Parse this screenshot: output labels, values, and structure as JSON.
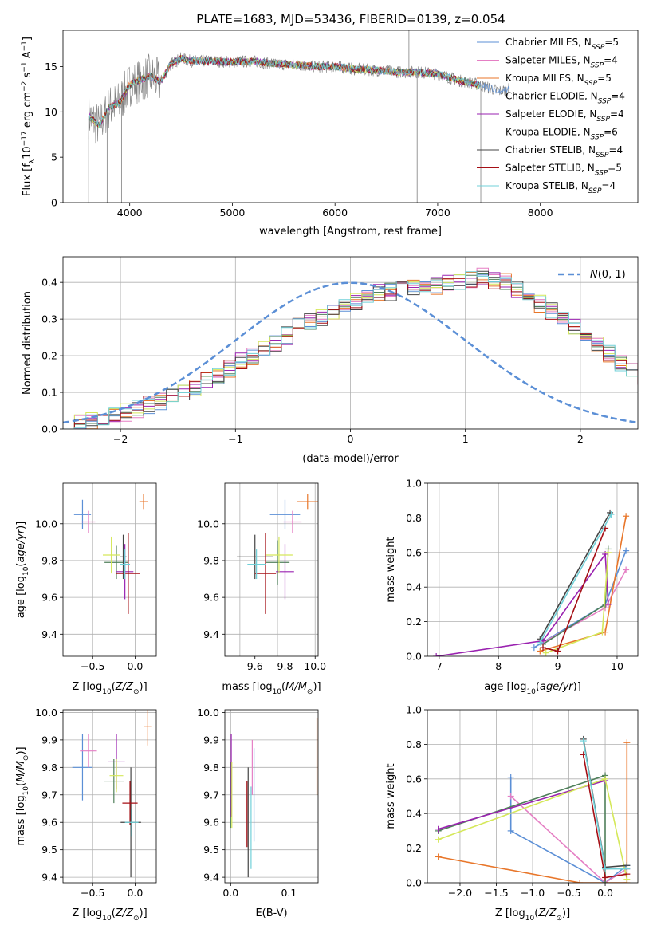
{
  "title": "PLATE=1683, MJD=53436, FIBERID=0139, z=0.054",
  "colors": {
    "Chabrier MILES": "#5b8fd6",
    "Salpeter MILES": "#e57fc4",
    "Kroupa MILES": "#e8762a",
    "Chabrier ELODIE": "#4f7f5a",
    "Salpeter ELODIE": "#9a22b0",
    "Kroupa ELODIE": "#d5e85a",
    "Chabrier STELIB": "#444444",
    "Salpeter STELIB": "#a50f15",
    "Kroupa STELIB": "#70d0d8",
    "data": "#808080",
    "normal": "#5b8fd6"
  },
  "chart_data": [
    {
      "id": "spectrum",
      "type": "line",
      "xlabel": "wavelength [Angstrom, rest frame]",
      "ylabel": "Flux [f_λ 10^-17 erg cm^-2 s^-1 A^-1]",
      "xlim": [
        3350,
        8950
      ],
      "ylim": [
        0,
        19
      ],
      "xticks": [
        4000,
        5000,
        6000,
        7000,
        8000
      ],
      "yticks": [
        0,
        5,
        10,
        15
      ],
      "grid": false,
      "legend_position": "top-right",
      "legend": [
        "Chabrier MILES, N_SSP=5",
        "Salpeter MILES, N_SSP=4",
        "Kroupa MILES, N_SSP=5",
        "Chabrier ELODIE, N_SSP=4",
        "Salpeter ELODIE, N_SSP=4",
        "Kroupa ELODIE, N_SSP=6",
        "Chabrier STELIB, N_SSP=4",
        "Salpeter STELIB, N_SSP=5",
        "Kroupa STELIB, N_SSP=4"
      ],
      "continuum": {
        "wavelength": [
          3600,
          3700,
          3800,
          3900,
          4000,
          4100,
          4200,
          4300,
          4400,
          4500,
          4600,
          4800,
          5000,
          5200,
          5400,
          5600,
          5800,
          6000,
          6200,
          6400,
          6600,
          6800,
          7000,
          7200,
          7400,
          7600,
          7700
        ],
        "flux": [
          9.5,
          8.5,
          10.5,
          11.0,
          13.0,
          13.5,
          14.0,
          13.3,
          15.3,
          15.9,
          15.6,
          15.6,
          15.5,
          15.6,
          15.3,
          15.2,
          15.0,
          15.0,
          14.7,
          14.6,
          14.4,
          14.4,
          14.2,
          13.5,
          13.0,
          12.3,
          12.5
        ]
      }
    },
    {
      "id": "residuals",
      "type": "line",
      "xlabel": "(data-model)/error",
      "ylabel": "Normed distribution",
      "xlim": [
        -2.5,
        2.5
      ],
      "ylim": [
        0,
        0.47
      ],
      "xticks": [
        -2,
        -1,
        0,
        1,
        2
      ],
      "yticks": [
        0.0,
        0.1,
        0.2,
        0.3,
        0.4
      ],
      "grid": true,
      "legend_position": "top-right",
      "legend": [
        "N(0,1)"
      ],
      "bin_width": 0.1,
      "bins_start": -2.5,
      "histogram": [
        0.015,
        0.02,
        0.025,
        0.03,
        0.035,
        0.045,
        0.055,
        0.065,
        0.075,
        0.085,
        0.1,
        0.115,
        0.13,
        0.145,
        0.165,
        0.185,
        0.2,
        0.215,
        0.235,
        0.255,
        0.28,
        0.29,
        0.305,
        0.32,
        0.335,
        0.35,
        0.36,
        0.37,
        0.375,
        0.385,
        0.39,
        0.395,
        0.39,
        0.4,
        0.405,
        0.41,
        0.415,
        0.405,
        0.4,
        0.38,
        0.36,
        0.34,
        0.32,
        0.295,
        0.275,
        0.255,
        0.23,
        0.205,
        0.18,
        0.16,
        0.14,
        0.12,
        0.1,
        0.085,
        0.07,
        0.06,
        0.05,
        0.04,
        0.035,
        0.03
      ]
    },
    {
      "id": "age-vs-Z",
      "type": "scatter",
      "xlabel": "Z [log10(Z/Z_sun)]",
      "ylabel": "age [log10(age/yr)]",
      "xlim": [
        -0.85,
        0.25
      ],
      "ylim": [
        9.28,
        10.22
      ],
      "xticks": [
        -0.5,
        0.0
      ],
      "yticks": [
        9.4,
        9.6,
        9.8,
        10.0
      ],
      "grid": true,
      "points": [
        {
          "model": "Chabrier MILES",
          "x": -0.62,
          "xerr": 0.1,
          "y": 10.05,
          "yerr": 0.08
        },
        {
          "model": "Salpeter MILES",
          "x": -0.55,
          "xerr": 0.08,
          "y": 10.01,
          "yerr": 0.06
        },
        {
          "model": "Kroupa MILES",
          "x": 0.1,
          "xerr": 0.05,
          "y": 10.12,
          "yerr": 0.04
        },
        {
          "model": "Chabrier ELODIE",
          "x": -0.22,
          "xerr": 0.14,
          "y": 9.79,
          "yerr": 0.09
        },
        {
          "model": "Salpeter ELODIE",
          "x": -0.12,
          "xerr": 0.1,
          "y": 9.74,
          "yerr": 0.15
        },
        {
          "model": "Kroupa ELODIE",
          "x": -0.28,
          "xerr": 0.1,
          "y": 9.83,
          "yerr": 0.1
        },
        {
          "model": "Chabrier STELIB",
          "x": -0.14,
          "xerr": 0.04,
          "y": 9.82,
          "yerr": 0.12
        },
        {
          "model": "Salpeter STELIB",
          "x": -0.08,
          "xerr": 0.14,
          "y": 9.73,
          "yerr": 0.22
        },
        {
          "model": "Kroupa STELIB",
          "x": -0.12,
          "xerr": 0.06,
          "y": 9.78,
          "yerr": 0.08
        }
      ]
    },
    {
      "id": "age-vs-mass",
      "type": "scatter",
      "xlabel": "mass [log10(M/M_sun)]",
      "ylabel": "",
      "xlim": [
        9.4,
        10.02
      ],
      "ylim": [
        9.28,
        10.22
      ],
      "xticks": [
        9.5,
        9.75,
        10.0
      ],
      "xticklabels": [
        "",
        "",
        ""
      ],
      "xtick_labels": [
        {
          "v": 9.6,
          "t": "9.6"
        },
        {
          "v": 9.8,
          "t": "9.8"
        },
        {
          "v": 10.0,
          "t": "10.0"
        }
      ],
      "yticks": [
        9.4,
        9.6,
        9.8,
        10.0
      ],
      "grid": true,
      "points": [
        {
          "model": "Chabrier MILES",
          "x": 9.8,
          "xerr": 0.1,
          "y": 10.05,
          "yerr": 0.08
        },
        {
          "model": "Salpeter MILES",
          "x": 9.85,
          "xerr": 0.06,
          "y": 10.01,
          "yerr": 0.06
        },
        {
          "model": "Kroupa MILES",
          "x": 9.95,
          "xerr": 0.07,
          "y": 10.12,
          "yerr": 0.04
        },
        {
          "model": "Chabrier ELODIE",
          "x": 9.75,
          "xerr": 0.08,
          "y": 9.79,
          "yerr": 0.12
        },
        {
          "model": "Salpeter ELODIE",
          "x": 9.8,
          "xerr": 0.06,
          "y": 9.74,
          "yerr": 0.15
        },
        {
          "model": "Kroupa ELODIE",
          "x": 9.76,
          "xerr": 0.09,
          "y": 9.83,
          "yerr": 0.1
        },
        {
          "model": "Chabrier STELIB",
          "x": 9.6,
          "xerr": 0.12,
          "y": 9.82,
          "yerr": 0.12
        },
        {
          "model": "Salpeter STELIB",
          "x": 9.67,
          "xerr": 0.07,
          "y": 9.73,
          "yerr": 0.22
        },
        {
          "model": "Kroupa STELIB",
          "x": 9.61,
          "xerr": 0.06,
          "y": 9.78,
          "yerr": 0.08
        }
      ]
    },
    {
      "id": "weight-vs-age",
      "type": "line",
      "xlabel": "age [log10(age/yr)]",
      "ylabel": "mass weight",
      "xlim": [
        6.8,
        10.35
      ],
      "ylim": [
        0,
        1.0
      ],
      "xticks": [
        7,
        8,
        9,
        10
      ],
      "yticks": [
        0.0,
        0.2,
        0.4,
        0.6,
        0.8,
        1.0
      ],
      "grid": true,
      "series": [
        {
          "model": "Chabrier MILES",
          "x": [
            8.6,
            9.8,
            10.15
          ],
          "y": [
            0.05,
            0.3,
            0.61
          ]
        },
        {
          "model": "Salpeter MILES",
          "x": [
            8.75,
            9.8,
            10.15
          ],
          "y": [
            0.08,
            0.28,
            0.5
          ]
        },
        {
          "model": "Kroupa MILES",
          "x": [
            8.7,
            9.8,
            10.15
          ],
          "y": [
            0.03,
            0.14,
            0.81
          ]
        },
        {
          "model": "Chabrier ELODIE",
          "x": [
            8.75,
            9.8,
            9.85
          ],
          "y": [
            0.07,
            0.3,
            0.62
          ]
        },
        {
          "model": "Salpeter ELODIE",
          "x": [
            6.95,
            8.75,
            9.8,
            9.85
          ],
          "y": [
            0.0,
            0.09,
            0.59,
            0.3
          ]
        },
        {
          "model": "Kroupa ELODIE",
          "x": [
            8.8,
            9.75,
            9.85
          ],
          "y": [
            0.02,
            0.14,
            0.6
          ]
        },
        {
          "model": "Chabrier STELIB",
          "x": [
            8.7,
            9.88
          ],
          "y": [
            0.1,
            0.83
          ]
        },
        {
          "model": "Salpeter STELIB",
          "x": [
            8.75,
            9.0,
            9.8
          ],
          "y": [
            0.05,
            0.03,
            0.74
          ]
        },
        {
          "model": "Kroupa STELIB",
          "x": [
            8.7,
            9.9
          ],
          "y": [
            0.08,
            0.82
          ]
        }
      ]
    },
    {
      "id": "mass-vs-Z",
      "type": "scatter",
      "xlabel": "Z [log10(Z/Z_sun)]",
      "ylabel": "mass [log10(M/M_sun)]",
      "xlim": [
        -0.85,
        0.25
      ],
      "ylim": [
        9.38,
        10.01
      ],
      "xticks": [
        -0.5,
        0.0
      ],
      "yticks": [
        9.4,
        9.5,
        9.6,
        9.7,
        9.8,
        9.9,
        10.0
      ],
      "grid": true,
      "points": [
        {
          "model": "Chabrier MILES",
          "x": -0.62,
          "xerr": 0.12,
          "y": 9.8,
          "yerr": 0.12
        },
        {
          "model": "Salpeter MILES",
          "x": -0.55,
          "xerr": 0.1,
          "y": 9.86,
          "yerr": 0.06
        },
        {
          "model": "Kroupa MILES",
          "x": 0.15,
          "xerr": 0.05,
          "y": 9.95,
          "yerr": 0.07
        },
        {
          "model": "Chabrier ELODIE",
          "x": -0.25,
          "xerr": 0.12,
          "y": 9.75,
          "yerr": 0.08
        },
        {
          "model": "Salpeter ELODIE",
          "x": -0.22,
          "xerr": 0.1,
          "y": 9.82,
          "yerr": 0.1
        },
        {
          "model": "Kroupa ELODIE",
          "x": -0.22,
          "xerr": 0.08,
          "y": 9.77,
          "yerr": 0.06
        },
        {
          "model": "Chabrier STELIB",
          "x": -0.05,
          "xerr": 0.12,
          "y": 9.6,
          "yerr": 0.2
        },
        {
          "model": "Salpeter STELIB",
          "x": -0.06,
          "xerr": 0.09,
          "y": 9.67,
          "yerr": 0.08
        },
        {
          "model": "Kroupa STELIB",
          "x": -0.04,
          "xerr": 0.08,
          "y": 9.6,
          "yerr": 0.05
        }
      ]
    },
    {
      "id": "mass-vs-EBV",
      "type": "scatter",
      "xlabel": "E(B-V)",
      "ylabel": "",
      "xlim": [
        -0.01,
        0.15
      ],
      "ylim": [
        9.38,
        10.01
      ],
      "xticks": [
        0.0,
        0.1
      ],
      "yticks": [
        9.4,
        9.5,
        9.6,
        9.7,
        9.8,
        9.9,
        10.0
      ],
      "grid": true,
      "points": [
        {
          "model": "Chabrier MILES",
          "x": 0.04,
          "xerr": 0,
          "y": 9.7,
          "yerr": 0.17
        },
        {
          "model": "Salpeter MILES",
          "x": 0.037,
          "xerr": 0,
          "y": 9.8,
          "yerr": 0.1
        },
        {
          "model": "Kroupa MILES",
          "x": 0.148,
          "xerr": 0,
          "y": 9.84,
          "yerr": 0.14
        },
        {
          "model": "Chabrier ELODIE",
          "x": 0.0,
          "xerr": 0,
          "y": 9.7,
          "yerr": 0.12
        },
        {
          "model": "Salpeter ELODIE",
          "x": 0.001,
          "xerr": 0,
          "y": 9.77,
          "yerr": 0.15
        },
        {
          "model": "Kroupa ELODIE",
          "x": 0.002,
          "xerr": 0,
          "y": 9.7,
          "yerr": 0.12
        },
        {
          "model": "Chabrier STELIB",
          "x": 0.03,
          "xerr": 0,
          "y": 9.6,
          "yerr": 0.2
        },
        {
          "model": "Salpeter STELIB",
          "x": 0.028,
          "xerr": 0,
          "y": 9.63,
          "yerr": 0.12
        },
        {
          "model": "Kroupa STELIB",
          "x": 0.035,
          "xerr": 0,
          "y": 9.58,
          "yerr": 0.15
        }
      ]
    },
    {
      "id": "weight-vs-Z",
      "type": "line",
      "xlabel": "Z [log10(Z/Z_sun)]",
      "ylabel": "mass weight",
      "xlim": [
        -2.45,
        0.45
      ],
      "ylim": [
        0,
        1.0
      ],
      "xticks": [
        -2.0,
        -1.5,
        -1.0,
        -0.5,
        0.0
      ],
      "yticks": [
        0.0,
        0.2,
        0.4,
        0.6,
        0.8,
        1.0
      ],
      "grid": true,
      "series": [
        {
          "model": "Chabrier MILES",
          "x": [
            -1.3,
            -1.3,
            0.0,
            0.3
          ],
          "y": [
            0.61,
            0.3,
            0.0,
            0.1
          ]
        },
        {
          "model": "Salpeter MILES",
          "x": [
            -1.3,
            0.0,
            0.3
          ],
          "y": [
            0.5,
            0.0,
            0.08
          ]
        },
        {
          "model": "Kroupa MILES",
          "x": [
            -2.3,
            -0.35,
            0.3,
            0.3
          ],
          "y": [
            0.15,
            0.0,
            0.0,
            0.81
          ]
        },
        {
          "model": "Chabrier ELODIE",
          "x": [
            -2.3,
            0.0,
            0.0
          ],
          "y": [
            0.3,
            0.62,
            0.0
          ]
        },
        {
          "model": "Salpeter ELODIE",
          "x": [
            -2.3,
            0.0
          ],
          "y": [
            0.31,
            0.59
          ]
        },
        {
          "model": "Kroupa ELODIE",
          "x": [
            -2.3,
            0.0,
            0.3
          ],
          "y": [
            0.25,
            0.6,
            0.02
          ]
        },
        {
          "model": "Chabrier STELIB",
          "x": [
            -0.3,
            0.0,
            0.3
          ],
          "y": [
            0.83,
            0.09,
            0.1
          ]
        },
        {
          "model": "Salpeter STELIB",
          "x": [
            -0.3,
            0.0,
            0.3
          ],
          "y": [
            0.74,
            0.03,
            0.05
          ]
        },
        {
          "model": "Kroupa STELIB",
          "x": [
            -0.3,
            0.0,
            0.3
          ],
          "y": [
            0.82,
            0.08,
            0.08
          ]
        }
      ]
    }
  ]
}
